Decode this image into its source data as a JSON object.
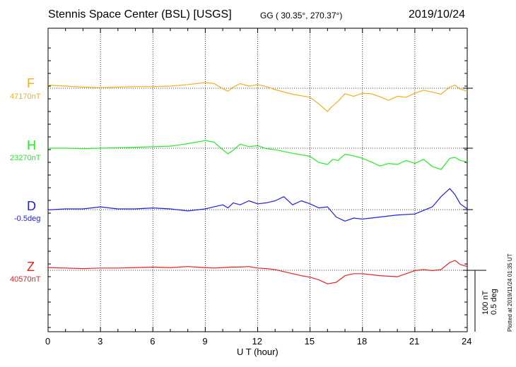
{
  "header": {
    "title": "Stennis Space Center (BSL)  [USGS]",
    "coords": "GG ( 30.35°, 270.37°)",
    "date": "2019/10/24"
  },
  "scale": {
    "nt_label": "100 nT",
    "deg_label": "0.5 deg",
    "nt_per_division": 100,
    "deg_per_division": 0.5
  },
  "footer": {
    "plotted_note": "Plotted at 2019/11/24 01:35 UT"
  },
  "chart_data": {
    "type": "line",
    "title": "Stennis Space Center (BSL)  [USGS]",
    "xlabel": "U T (hour)",
    "xlim": [
      0,
      24
    ],
    "xticks": [
      "0",
      "3",
      "6",
      "9",
      "12",
      "15",
      "18",
      "21",
      "24"
    ],
    "grid": true,
    "series": [
      {
        "name": "F",
        "baseline_label": "47170nT",
        "color": "#f0b020",
        "unit": "nT",
        "x": [
          0,
          1,
          2,
          3,
          4,
          5,
          6,
          7,
          8,
          9,
          9.5,
          10,
          10.3,
          10.6,
          11,
          11.5,
          12,
          12.5,
          13,
          14,
          15,
          15.5,
          16,
          16.2,
          16.6,
          17,
          17.5,
          18,
          18.5,
          19,
          19.5,
          20,
          20.5,
          21,
          21.5,
          22,
          22.5,
          23,
          23.3,
          23.6,
          24
        ],
        "values": [
          2,
          0,
          -2,
          -3,
          -2,
          -1,
          -1,
          0,
          3,
          7,
          5,
          -5,
          -10,
          -2,
          5,
          0,
          3,
          -1,
          -7,
          -16,
          -22,
          -35,
          -50,
          -42,
          -30,
          -15,
          -20,
          -14,
          -15,
          -21,
          -28,
          -20,
          -22,
          -14,
          -8,
          -12,
          -16,
          -2,
          2,
          -6,
          -10
        ]
      },
      {
        "name": "H",
        "baseline_label": "23270nT",
        "color": "#22ee22",
        "unit": "nT",
        "x": [
          0,
          1,
          2,
          3,
          4,
          5,
          6,
          7,
          8,
          9,
          9.5,
          10,
          10.3,
          10.6,
          11,
          11.5,
          12,
          12.5,
          13,
          14,
          15,
          15.5,
          16,
          16.3,
          16.6,
          17,
          17.5,
          18,
          18.5,
          19,
          19.5,
          20,
          20.5,
          21,
          21.5,
          22,
          22.5,
          23,
          23.3,
          23.6,
          24
        ],
        "values": [
          0,
          0,
          -1,
          0,
          1,
          2,
          3,
          4,
          9,
          15,
          12,
          -3,
          -11,
          -4,
          8,
          3,
          5,
          -1,
          -3,
          -10,
          -16,
          -28,
          -32,
          -22,
          -24,
          -12,
          -15,
          -20,
          -27,
          -35,
          -30,
          -32,
          -24,
          -30,
          -22,
          -36,
          -42,
          -20,
          -18,
          -24,
          -27
        ]
      },
      {
        "name": "D",
        "baseline_label": "-0.5deg",
        "color": "#2020e0",
        "unit": "deg",
        "x": [
          0,
          1,
          2,
          3,
          4,
          5,
          6,
          7,
          8,
          9,
          9.5,
          10,
          10.3,
          10.6,
          11,
          11.5,
          12,
          12.5,
          13,
          13.5,
          14,
          14.5,
          15,
          15.5,
          16,
          16.5,
          17,
          17.5,
          18,
          19,
          20,
          21,
          22,
          22.5,
          23,
          23.3,
          23.6,
          24
        ],
        "values": [
          -0.01,
          0,
          0,
          0.02,
          0,
          0,
          0.01,
          0,
          -0.02,
          0,
          0.02,
          0.04,
          0.01,
          0.06,
          0.04,
          0.08,
          0.05,
          0.06,
          0.08,
          0.12,
          0.04,
          0.08,
          0.05,
          0.01,
          0.02,
          -0.08,
          -0.12,
          -0.09,
          -0.1,
          -0.08,
          -0.06,
          -0.05,
          0.02,
          0.12,
          0.2,
          0.14,
          0.05,
          0
        ]
      },
      {
        "name": "Z",
        "baseline_label": "40570nT",
        "color": "#e82020",
        "unit": "nT",
        "x": [
          0,
          1,
          2,
          3,
          4,
          5,
          6,
          7,
          8,
          9,
          9.5,
          10,
          10.5,
          11,
          11.5,
          12,
          12.5,
          13,
          13.5,
          14,
          14.5,
          15,
          15.5,
          16,
          16.5,
          17,
          17.5,
          18,
          19,
          20,
          20.5,
          21,
          21.5,
          22,
          22.5,
          23,
          23.3,
          23.6,
          24
        ],
        "values": [
          4,
          3,
          2,
          3,
          3,
          4,
          5,
          4,
          6,
          4,
          3,
          4,
          5,
          5,
          6,
          3,
          2,
          0,
          -4,
          -8,
          -12,
          -15,
          -20,
          -28,
          -25,
          -12,
          -8,
          -8,
          -12,
          -14,
          -8,
          -2,
          0,
          -2,
          0,
          14,
          18,
          10,
          6
        ]
      }
    ]
  }
}
